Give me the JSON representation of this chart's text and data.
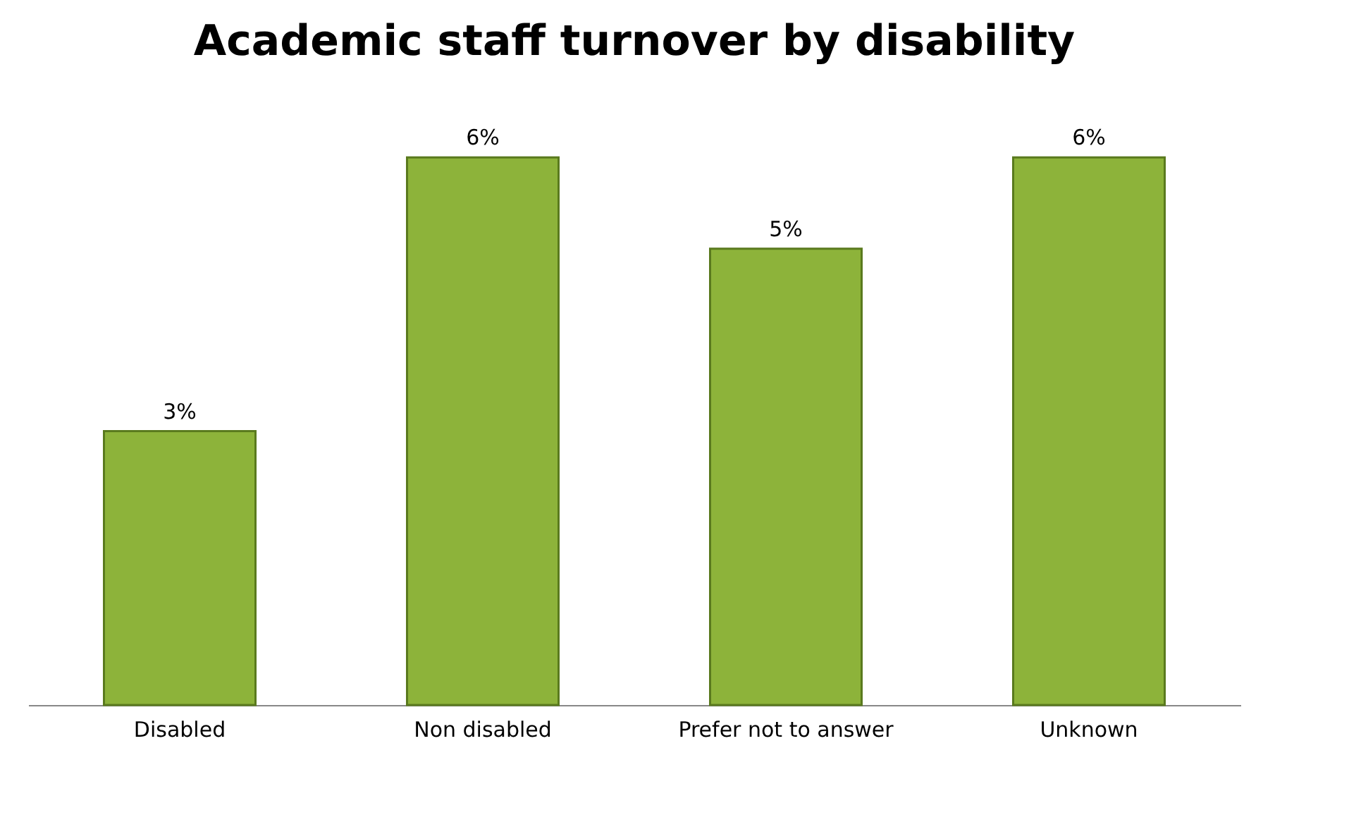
{
  "chart_data": {
    "type": "bar",
    "title": "Academic staff turnover by disability",
    "categories": [
      "Disabled",
      "Non disabled",
      "Prefer not to answer",
      "Unknown"
    ],
    "values": [
      3,
      6,
      5,
      6
    ],
    "color": "#8db33a",
    "value_labels": [
      "3%",
      "6%",
      "5%",
      "6%"
    ]
  }
}
